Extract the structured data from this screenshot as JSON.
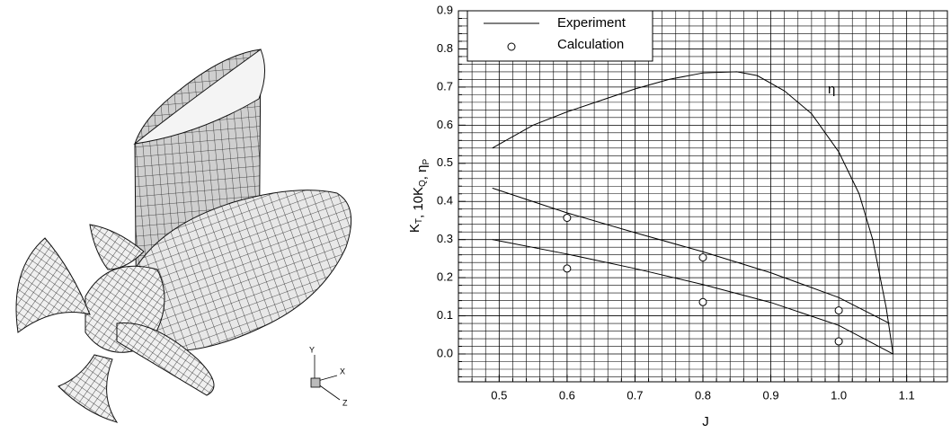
{
  "chart_data": {
    "type": "line",
    "xlabel": "J",
    "ylabel_parts": [
      {
        "text": "K",
        "sub": "T"
      },
      {
        "text": ", 10K",
        "sub": "Q"
      },
      {
        "text": ", η",
        "sub": "P"
      }
    ],
    "annotation": "η",
    "triad": {
      "y": "Y",
      "x": "X",
      "z": "Z"
    },
    "xlim": [
      0.44,
      1.16
    ],
    "ylim": [
      -0.073,
      0.9
    ],
    "xticks": [
      0.5,
      0.6,
      0.7,
      0.8,
      0.9,
      {
        "value": 1.0,
        "label": "1.0"
      },
      1.1
    ],
    "yticks": [
      {
        "value": 0,
        "label": "0.0"
      },
      0.1,
      0.2,
      0.3,
      0.4,
      0.5,
      0.6,
      0.7,
      0.8,
      0.9
    ],
    "grid": true,
    "minor_per_major": 5,
    "legend": "top-left",
    "series": [
      {
        "name": "Experiment",
        "type": "line",
        "color": "#000000",
        "x": [
          0.49,
          0.55,
          0.6,
          0.65,
          0.7,
          0.75,
          0.8,
          0.85,
          0.88,
          0.92,
          0.96,
          1.0,
          1.03,
          1.05,
          1.07,
          1.08,
          null,
          0.49,
          0.6,
          0.7,
          0.8,
          0.9,
          1.0,
          1.075,
          null,
          0.49,
          0.6,
          0.7,
          0.8,
          0.9,
          1.0,
          1.08
        ],
        "values": [
          0.54,
          0.6,
          0.635,
          0.665,
          0.695,
          0.72,
          0.737,
          0.74,
          0.73,
          0.69,
          0.63,
          0.53,
          0.42,
          0.3,
          0.12,
          0.0,
          null,
          0.435,
          0.37,
          0.318,
          0.268,
          0.213,
          0.148,
          0.08,
          null,
          0.3,
          0.262,
          0.224,
          0.182,
          0.135,
          0.075,
          0.0
        ]
      },
      {
        "name": "Calculation",
        "type": "scatter",
        "color": "#000000",
        "x": [
          0.6,
          0.6,
          0.8,
          0.8,
          1.0,
          1.0
        ],
        "values": [
          0.357,
          0.224,
          0.253,
          0.136,
          0.114,
          0.033
        ]
      }
    ]
  }
}
